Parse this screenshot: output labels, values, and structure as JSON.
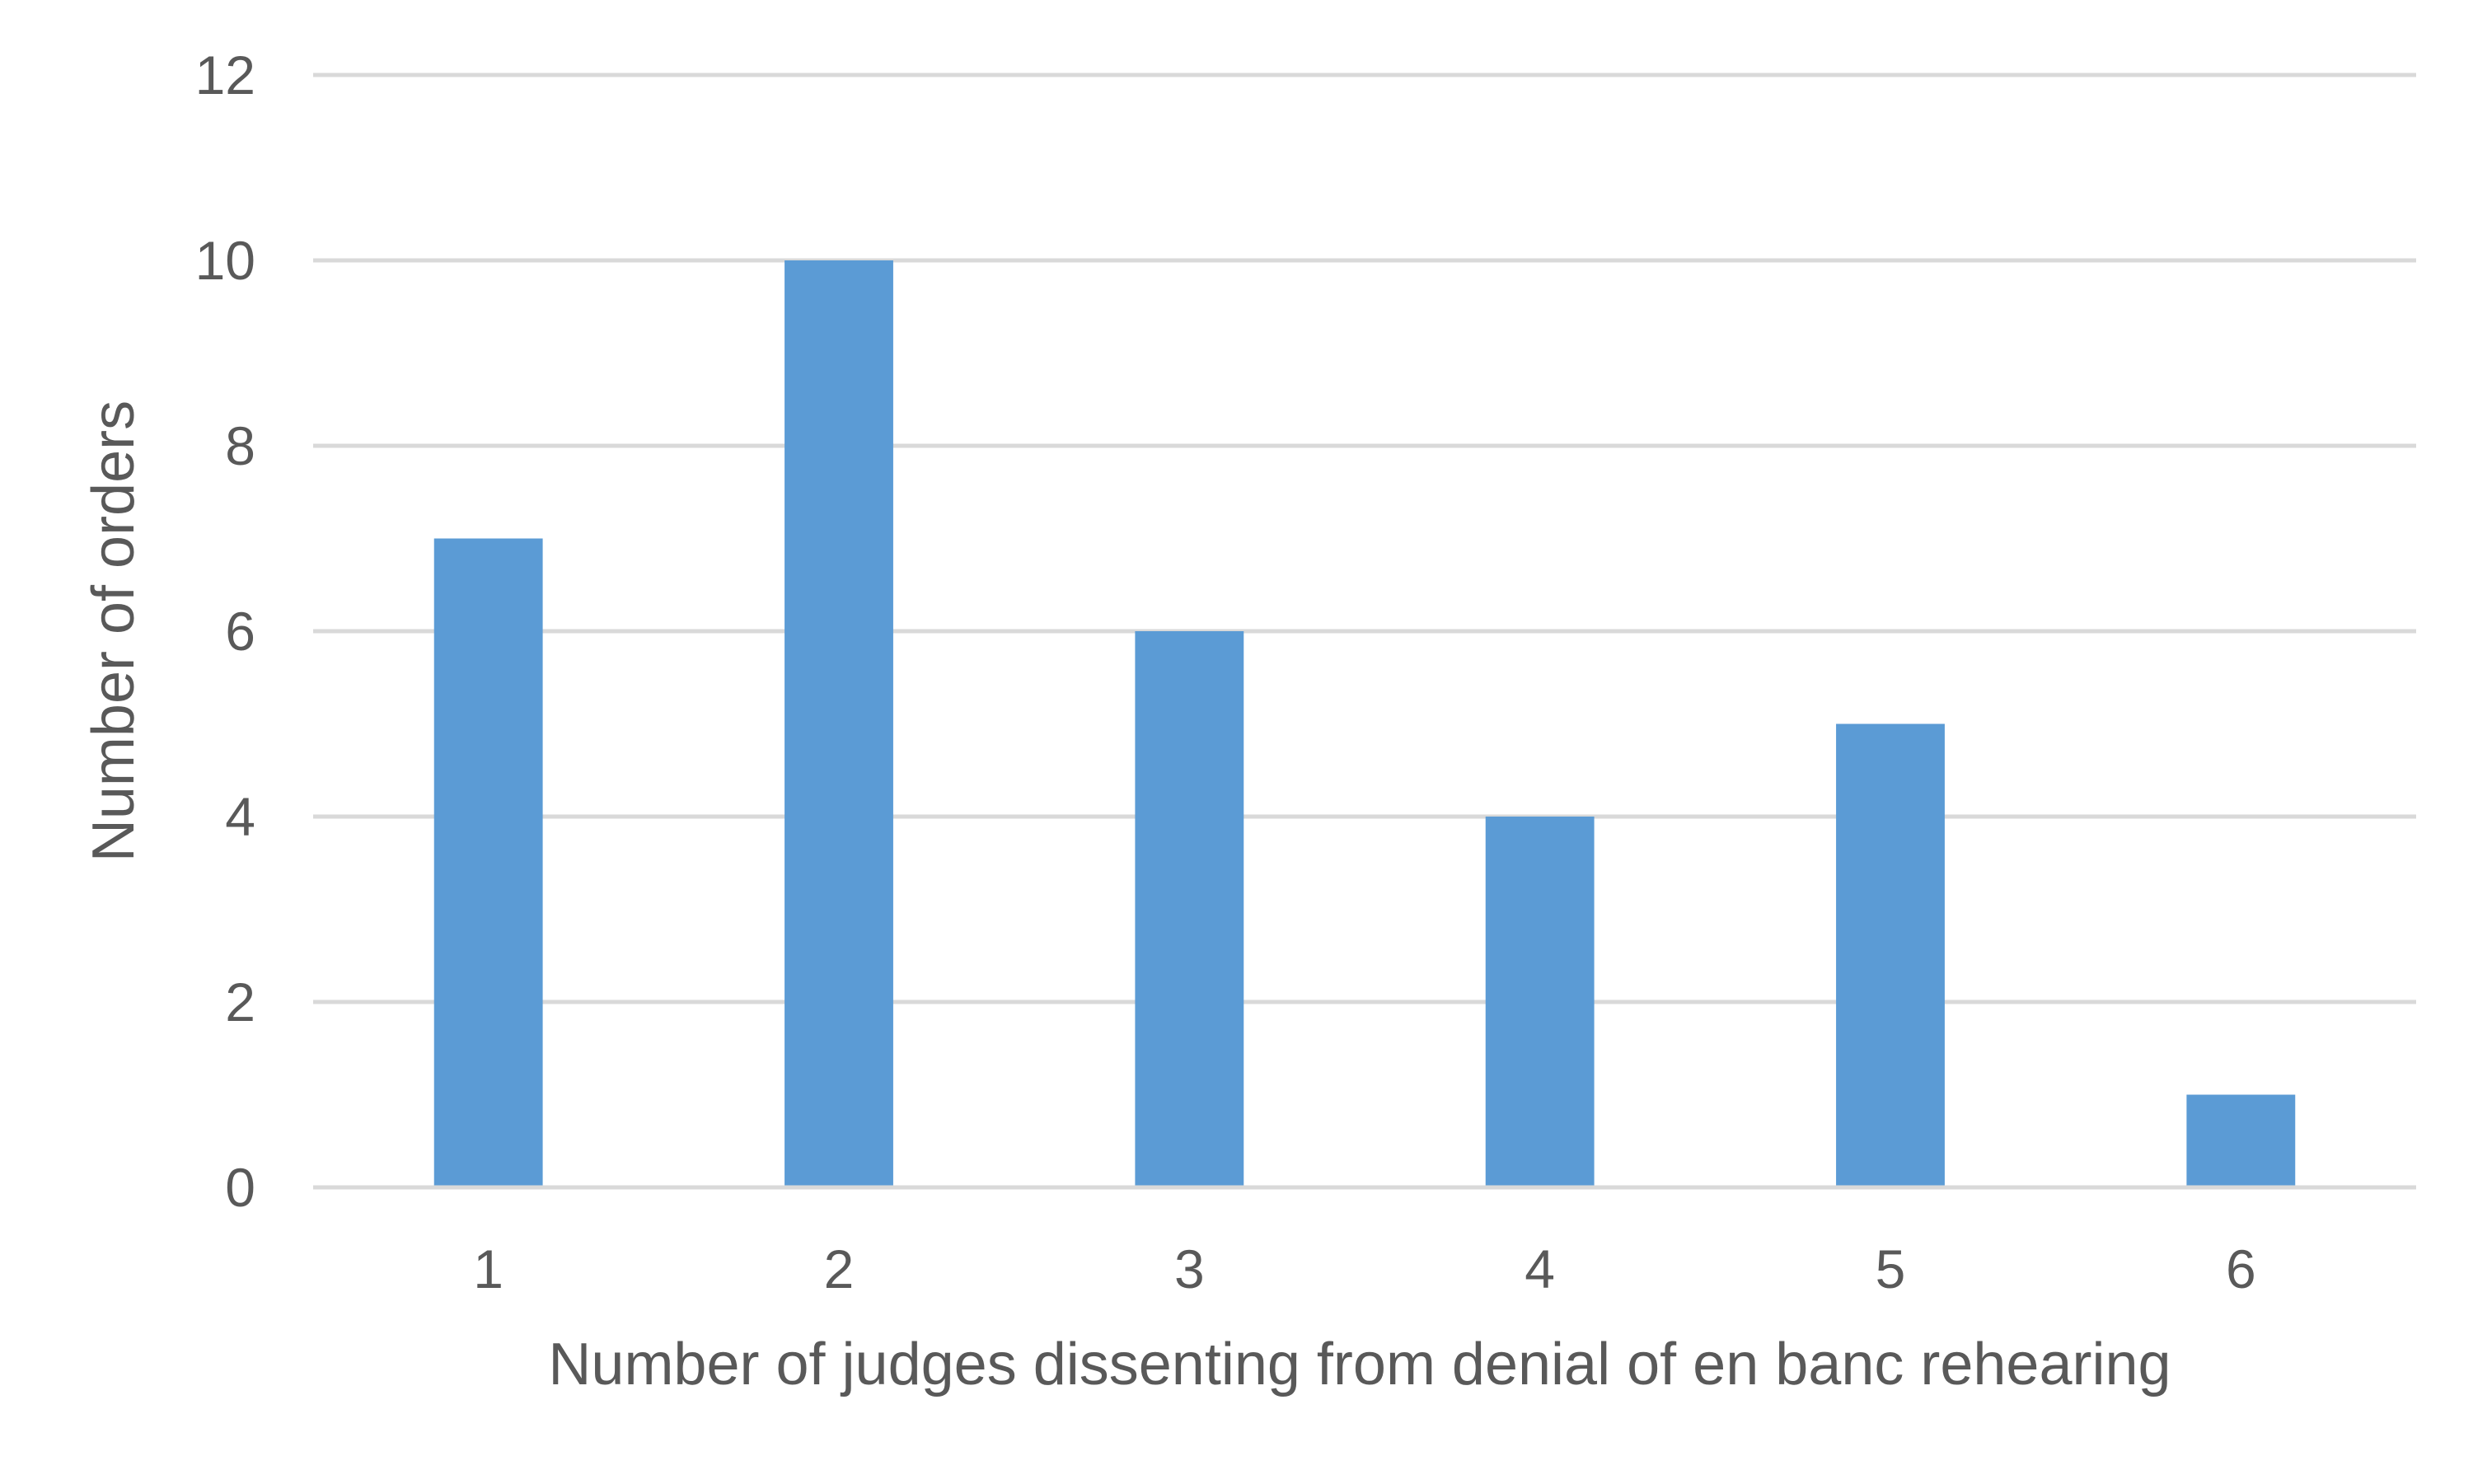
{
  "chart_data": {
    "type": "bar",
    "categories": [
      "1",
      "2",
      "3",
      "4",
      "5",
      "6"
    ],
    "values": [
      7,
      10,
      6,
      4,
      5,
      1
    ],
    "title": "",
    "xlabel": "Number of judges dissenting from denial of en banc rehearing",
    "ylabel": "Number of orders",
    "ylim": [
      0,
      12
    ],
    "yticks": [
      "0",
      "2",
      "4",
      "6",
      "8",
      "10",
      "12"
    ],
    "grid": true,
    "legend": "none",
    "bar_color": "#5b9bd5"
  }
}
